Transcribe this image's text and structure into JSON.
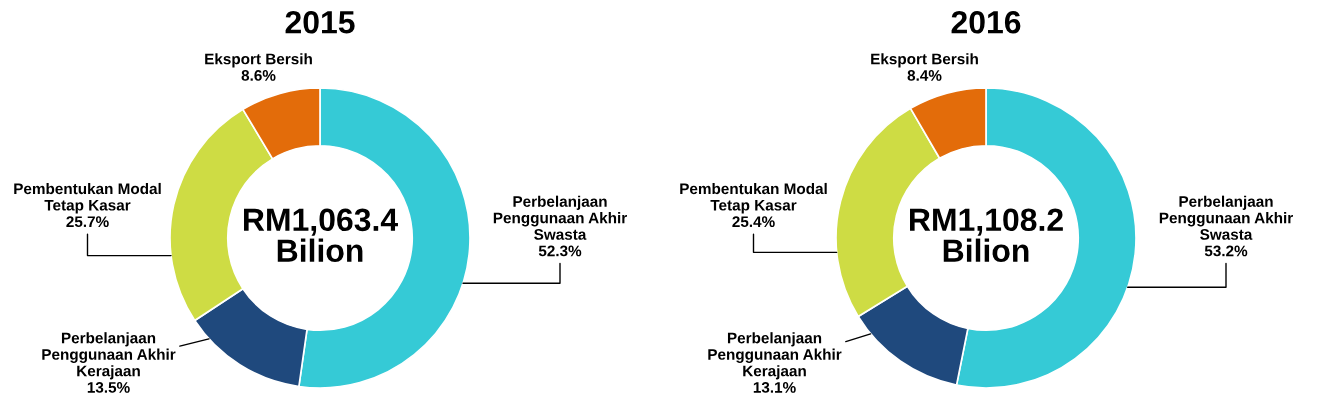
{
  "chart_data": [
    {
      "type": "donut",
      "title": "2015",
      "categories": [
        "Perbelanjaan\nPenggunaan Akhir\nSwasta",
        "Perbelanjaan\nPenggunaan Akhir\nKerajaan",
        "Pembentukan Modal\nTetap Kasar",
        "Eksport Bersih"
      ],
      "values": [
        52.3,
        13.5,
        25.7,
        8.6
      ],
      "colors": [
        "#35cad6",
        "#1f497d",
        "#cedc44",
        "#e36c0a"
      ],
      "value_labels": [
        "52.3%",
        "13.5%",
        "25.7%",
        "8.6%"
      ],
      "annotations": [
        "RM1,063.4\nBilion"
      ]
    },
    {
      "type": "donut",
      "title": "2016",
      "categories": [
        "Perbelanjaan\nPenggunaan Akhir\nSwasta",
        "Perbelanjaan\nPenggunaan Akhir\nKerajaan",
        "Pembentukan Modal\nTetap Kasar",
        "Eksport Bersih"
      ],
      "values": [
        53.2,
        13.1,
        25.4,
        8.4
      ],
      "colors": [
        "#35cad6",
        "#1f497d",
        "#cedc44",
        "#e36c0a"
      ],
      "value_labels": [
        "53.2%",
        "13.1%",
        "25.4%",
        "8.4%"
      ],
      "annotations": [
        "RM1,108.2\nBilion"
      ]
    }
  ]
}
